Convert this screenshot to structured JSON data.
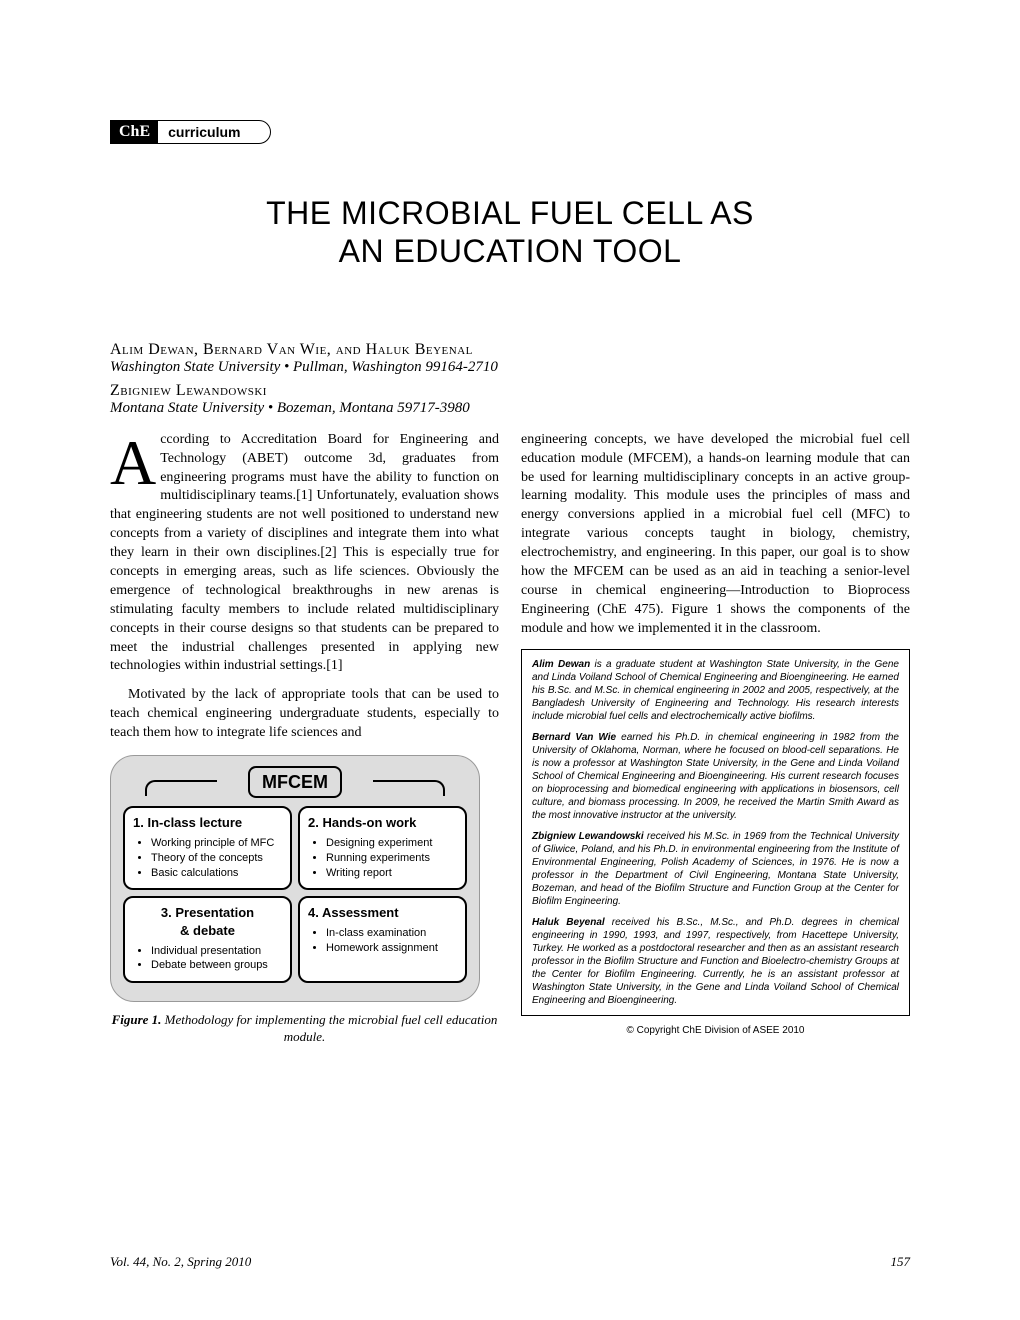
{
  "section_badge": {
    "box": "ChE",
    "label": "curriculum"
  },
  "title_line1": "THE MICROBIAL FUEL CELL AS",
  "title_line2": "AN EDUCATION TOOL",
  "authors1": "Alim Dewan, Bernard Van Wie, and Haluk Beyenal",
  "affiliation1": "Washington State University  •  Pullman, Washington 99164-2710",
  "authors2": "Zbigniew Lewandowski",
  "affiliation2": "Montana State University  •  Bozeman, Montana 59717-3980",
  "col1": {
    "dropcap": "A",
    "p1_rest": "ccording to Accreditation Board for Engineering and Technology (ABET) outcome 3d, graduates from engineering programs must have the ability to function on multidisciplinary teams.[1] Unfortunately, evaluation shows that engineering students are not well positioned to understand new concepts from a variety of disciplines and integrate them into what they learn in their own disciplines.[2] This is especially true for concepts in emerging areas, such as life sciences. Obviously the emergence of technological breakthroughs in new arenas is stimulating faculty members to include related multidisciplinary concepts in their course designs so that students can be prepared to meet the industrial challenges presented in applying new technologies within industrial settings.[1]",
    "p2": "Motivated by the lack of appropriate tools that can be used to teach chemical engineering undergraduate students, especially to teach them how to integrate life sciences and"
  },
  "col2": {
    "p1": "engineering concepts, we have developed the microbial fuel cell education module (MFCEM), a hands-on learning module that can be used for learning multidisciplinary concepts in an active group-learning modality. This module uses the principles of mass and energy conversions applied in a microbial fuel cell (MFC) to integrate various concepts taught in biology, chemistry, electrochemistry, and engineering. In this paper, our goal is to show how the MFCEM can be used as an aid in teaching a senior-level course in chemical engineering—Introduction to Bioprocess Engineering (ChE 475). Figure 1 shows the components of the module and how we implemented it in the classroom."
  },
  "bios": {
    "b1_name": "Alim Dewan",
    "b1_text": " is a graduate student at Washington State University, in the Gene and Linda Voiland School of Chemical Engineering and Bioengineering. He earned his B.Sc. and M.Sc. in chemical engineering in 2002 and 2005, respectively, at the Bangladesh University of Engineering and Technology. His research interests include microbial fuel cells and electrochemically active biofilms.",
    "b2_name": "Bernard Van Wie",
    "b2_text": " earned his Ph.D. in chemical engineering in 1982 from the University of Oklahoma, Norman, where he focused on blood-cell separations. He is now a professor at Washington State University, in the Gene and Linda Voiland School of Chemical Engineering and Bioengineering. His current research focuses on bioprocessing and biomedical engineering with applications in biosensors, cell culture, and biomass processing. In 2009, he received the Martin Smith Award as the most innovative instructor at the university.",
    "b3_name": "Zbigniew Lewandowski",
    "b3_text": " received his M.Sc. in 1969 from the Technical University of Gliwice, Poland, and his Ph.D. in environmental engineering from the Institute of Environmental Engineering, Polish Academy of Sciences, in 1976. He is now a professor in the Department of Civil Engineering, Montana State University, Bozeman, and head of the Biofilm Structure and Function Group at the Center for Biofilm Engineering.",
    "b4_name": "Haluk Beyenal",
    "b4_text": " received his B.Sc., M.Sc., and Ph.D. degrees in chemical engineering in 1990, 1993, and 1997, respectively, from Hacettepe University, Turkey. He worked as a postdoctoral researcher and then as an assistant research professor in the Biofilm Structure and Function and Bioelectro-chemistry Groups at the Center for Biofilm Engineering. Currently, he is an assistant professor at Washington State University, in the Gene and Linda Voiland School of Chemical Engineering and Bioengineering."
  },
  "copyright": "©  Copyright ChE Division of ASEE 2010",
  "diagram": {
    "title": "MFCEM",
    "cells": {
      "c1_title": "1. In-class lecture",
      "c1_items": [
        "Working principle of MFC",
        "Theory of the concepts",
        "Basic calculations"
      ],
      "c2_title": "2. Hands-on work",
      "c2_items": [
        "Designing experiment",
        "Running experiments",
        "Writing report"
      ],
      "c3_title_l1": "3. Presentation",
      "c3_title_l2": "& debate",
      "c3_items": [
        "Individual presentation",
        "Debate between groups"
      ],
      "c4_title": "4. Assessment",
      "c4_items": [
        "In-class examination",
        "Homework assignment"
      ]
    }
  },
  "figure_caption": {
    "label": "Figure 1.",
    "text": " Methodology for implementing the microbial fuel cell education module."
  },
  "footer": {
    "issue": "Vol. 44, No. 2, Spring 2010",
    "page": "157"
  }
}
